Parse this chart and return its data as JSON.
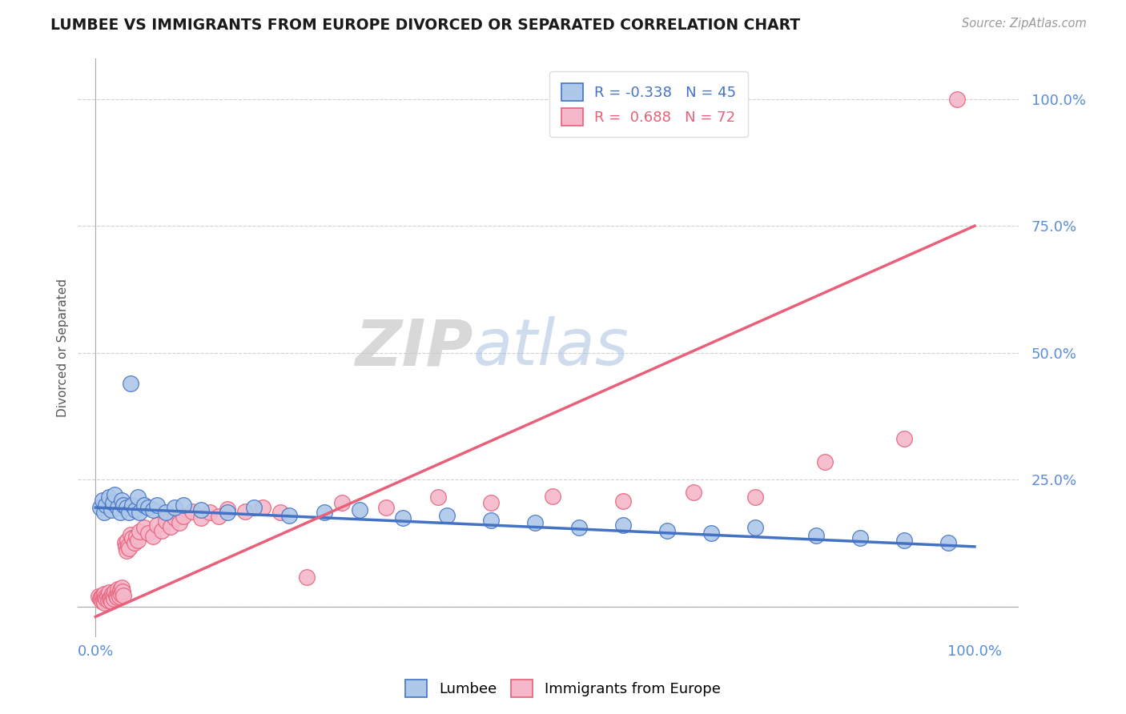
{
  "title": "LUMBEE VS IMMIGRANTS FROM EUROPE DIVORCED OR SEPARATED CORRELATION CHART",
  "source_text": "Source: ZipAtlas.com",
  "ylabel": "Divorced or Separated",
  "watermark_zip": "ZIP",
  "watermark_atlas": "atlas",
  "lumbee_R": -0.338,
  "lumbee_N": 45,
  "europe_R": 0.688,
  "europe_N": 72,
  "lumbee_color": "#adc8e8",
  "europe_color": "#f5b8cb",
  "lumbee_line_color": "#4472c4",
  "europe_line_color": "#e8607a",
  "title_color": "#1a1a1a",
  "axis_label_color": "#5b8dd9",
  "grid_color": "#d0d0d0",
  "background_color": "#ffffff",
  "lumbee_x": [
    0.005,
    0.008,
    0.01,
    0.012,
    0.015,
    0.018,
    0.02,
    0.022,
    0.025,
    0.028,
    0.03,
    0.032,
    0.035,
    0.038,
    0.04,
    0.042,
    0.045,
    0.048,
    0.05,
    0.055,
    0.06,
    0.065,
    0.07,
    0.08,
    0.09,
    0.1,
    0.12,
    0.15,
    0.18,
    0.22,
    0.26,
    0.3,
    0.35,
    0.4,
    0.45,
    0.5,
    0.55,
    0.6,
    0.65,
    0.7,
    0.75,
    0.82,
    0.87,
    0.92,
    0.97
  ],
  "lumbee_y": [
    0.195,
    0.21,
    0.185,
    0.2,
    0.215,
    0.19,
    0.205,
    0.22,
    0.195,
    0.185,
    0.21,
    0.2,
    0.195,
    0.185,
    0.44,
    0.2,
    0.19,
    0.215,
    0.185,
    0.2,
    0.195,
    0.19,
    0.2,
    0.185,
    0.195,
    0.2,
    0.19,
    0.185,
    0.195,
    0.18,
    0.185,
    0.19,
    0.175,
    0.18,
    0.17,
    0.165,
    0.155,
    0.16,
    0.15,
    0.145,
    0.155,
    0.14,
    0.135,
    0.13,
    0.125
  ],
  "europe_x": [
    0.003,
    0.005,
    0.006,
    0.007,
    0.008,
    0.009,
    0.01,
    0.01,
    0.011,
    0.012,
    0.013,
    0.014,
    0.015,
    0.016,
    0.017,
    0.018,
    0.019,
    0.02,
    0.021,
    0.022,
    0.023,
    0.024,
    0.025,
    0.026,
    0.027,
    0.028,
    0.029,
    0.03,
    0.031,
    0.032,
    0.033,
    0.034,
    0.035,
    0.036,
    0.037,
    0.038,
    0.04,
    0.042,
    0.044,
    0.046,
    0.048,
    0.05,
    0.055,
    0.06,
    0.065,
    0.07,
    0.075,
    0.08,
    0.085,
    0.09,
    0.095,
    0.1,
    0.11,
    0.12,
    0.13,
    0.14,
    0.15,
    0.17,
    0.19,
    0.21,
    0.24,
    0.28,
    0.33,
    0.39,
    0.45,
    0.52,
    0.6,
    0.68,
    0.75,
    0.83,
    0.92,
    0.98
  ],
  "europe_y": [
    0.02,
    0.015,
    0.018,
    0.01,
    0.022,
    0.012,
    0.025,
    0.008,
    0.018,
    0.015,
    0.02,
    0.012,
    0.028,
    0.015,
    0.018,
    0.01,
    0.025,
    0.02,
    0.015,
    0.03,
    0.022,
    0.018,
    0.035,
    0.025,
    0.02,
    0.032,
    0.025,
    0.038,
    0.03,
    0.022,
    0.125,
    0.118,
    0.11,
    0.13,
    0.12,
    0.115,
    0.142,
    0.135,
    0.125,
    0.138,
    0.13,
    0.148,
    0.155,
    0.145,
    0.138,
    0.16,
    0.15,
    0.168,
    0.158,
    0.175,
    0.165,
    0.178,
    0.188,
    0.175,
    0.185,
    0.178,
    0.192,
    0.188,
    0.195,
    0.185,
    0.058,
    0.205,
    0.195,
    0.215,
    0.205,
    0.218,
    0.208,
    0.225,
    0.215,
    0.285,
    0.33,
    1.0
  ],
  "yticks": [
    0.0,
    0.25,
    0.5,
    0.75,
    1.0
  ],
  "ytick_labels": [
    "",
    "25.0%",
    "50.0%",
    "75.0%",
    "100.0%"
  ],
  "xtick_labels": [
    "0.0%",
    "100.0%"
  ],
  "ylim": [
    -0.06,
    1.08
  ],
  "xlim": [
    -0.02,
    1.05
  ]
}
